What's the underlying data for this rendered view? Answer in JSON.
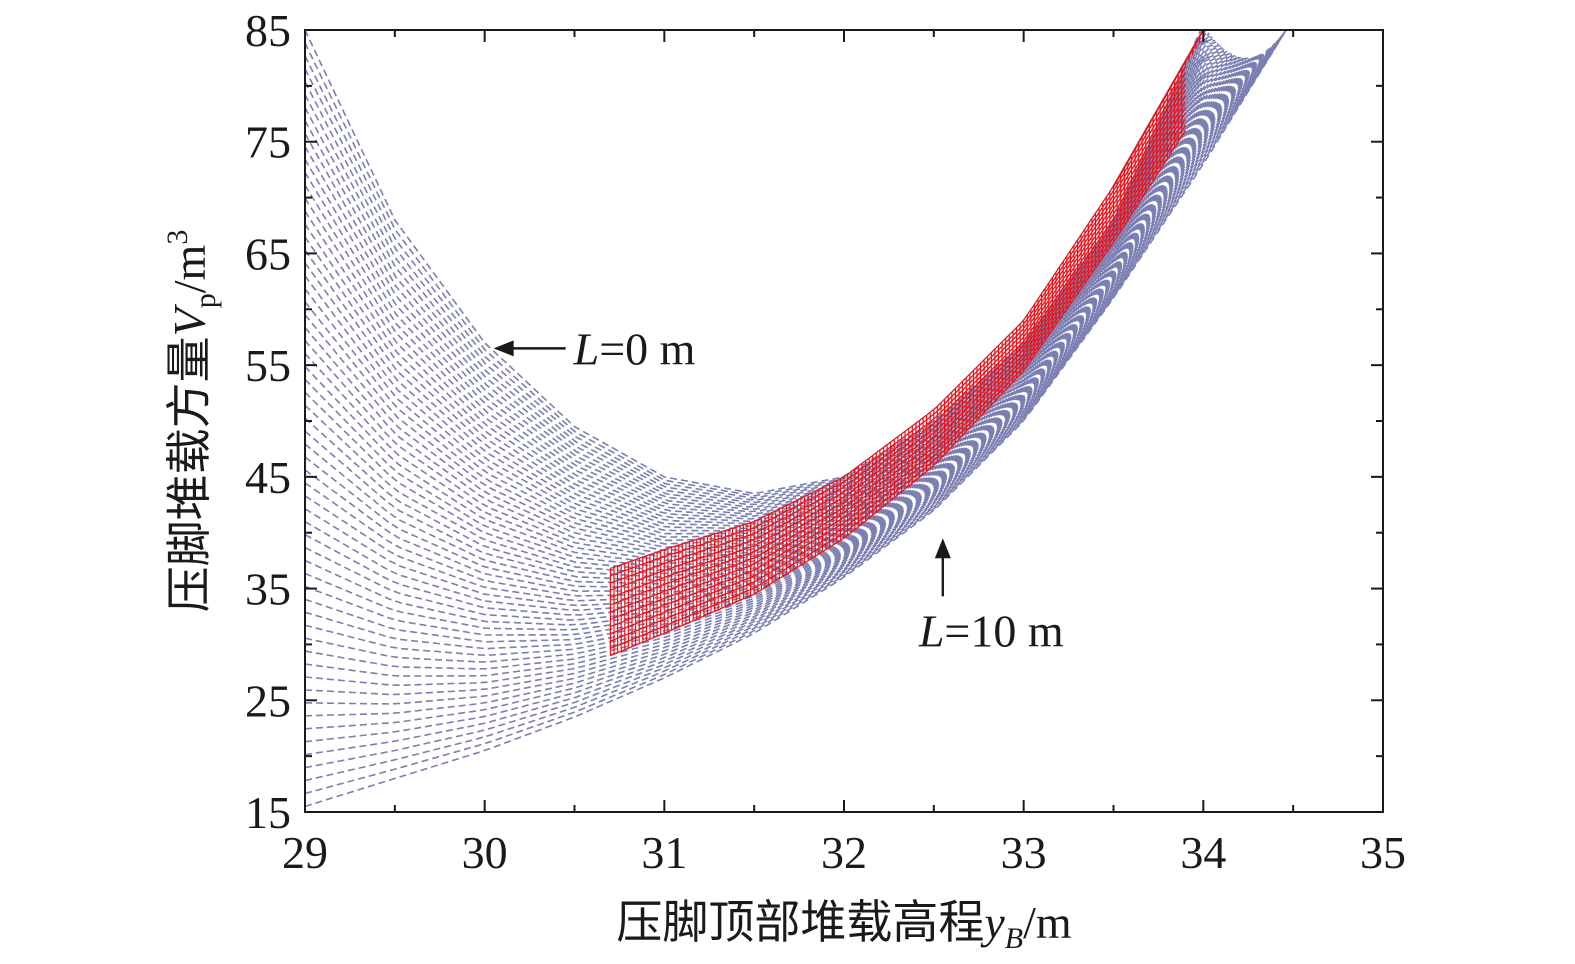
{
  "chart_data": {
    "type": "line",
    "title": "",
    "xlabel": {
      "main": "压脚顶部堆载高程",
      "symbol": "y",
      "subscript": "B",
      "unit": "/m"
    },
    "ylabel": {
      "main": "压脚堆载方量",
      "symbol": "V",
      "subscript": "p",
      "unit": "/m",
      "superscript": "3"
    },
    "xlim": [
      29,
      35
    ],
    "ylim": [
      15,
      85
    ],
    "xticks": [
      "29",
      "30",
      "31",
      "32",
      "33",
      "34",
      "35"
    ],
    "yticks": [
      "15",
      "25",
      "35",
      "45",
      "55",
      "65",
      "75",
      "85"
    ],
    "grid": false,
    "family": {
      "parameter": "L",
      "range": [
        0,
        10
      ],
      "style": "dashed",
      "color": "#7b7fb2",
      "boundary_L0": {
        "x": [
          29.0,
          29.5,
          30.0,
          30.5,
          31.0,
          31.5,
          32.0,
          32.5,
          33.0,
          33.5,
          34.0
        ],
        "y": [
          85.0,
          68.0,
          57.0,
          49.5,
          45.0,
          43.5,
          45.0,
          50.0,
          57.0,
          68.0,
          85.5
        ]
      },
      "boundary_L10": {
        "x": [
          29.0,
          29.5,
          30.0,
          30.5,
          31.0,
          31.5,
          32.0,
          32.5,
          33.0,
          33.5,
          34.0,
          34.5
        ],
        "y": [
          15.5,
          18.0,
          20.5,
          23.5,
          27.0,
          31.0,
          36.0,
          42.0,
          50.0,
          61.0,
          73.0,
          86.0
        ]
      }
    },
    "feasible_region": {
      "color": "#e8141c",
      "x_start": 30.7,
      "x_end": 34.0,
      "upper": {
        "x": [
          30.7,
          31.0,
          31.5,
          32.0,
          32.5,
          33.0,
          33.5,
          34.0
        ],
        "y": [
          36.8,
          38.5,
          41.0,
          45.0,
          51.0,
          59.0,
          71.0,
          85.0
        ]
      },
      "lower": {
        "x": [
          30.7,
          31.0,
          31.5,
          32.0,
          32.5,
          33.0,
          33.5,
          33.9
        ],
        "y": [
          29.0,
          31.0,
          34.5,
          39.5,
          46.0,
          54.5,
          66.0,
          76.0
        ]
      }
    },
    "annotations": [
      {
        "name": "L-zero",
        "var": "L",
        "text": "=0 m",
        "target": [
          30.05,
          56.5
        ]
      },
      {
        "name": "L-ten",
        "var": "L",
        "text": "=10 m",
        "target": [
          32.55,
          39.5
        ]
      }
    ]
  }
}
